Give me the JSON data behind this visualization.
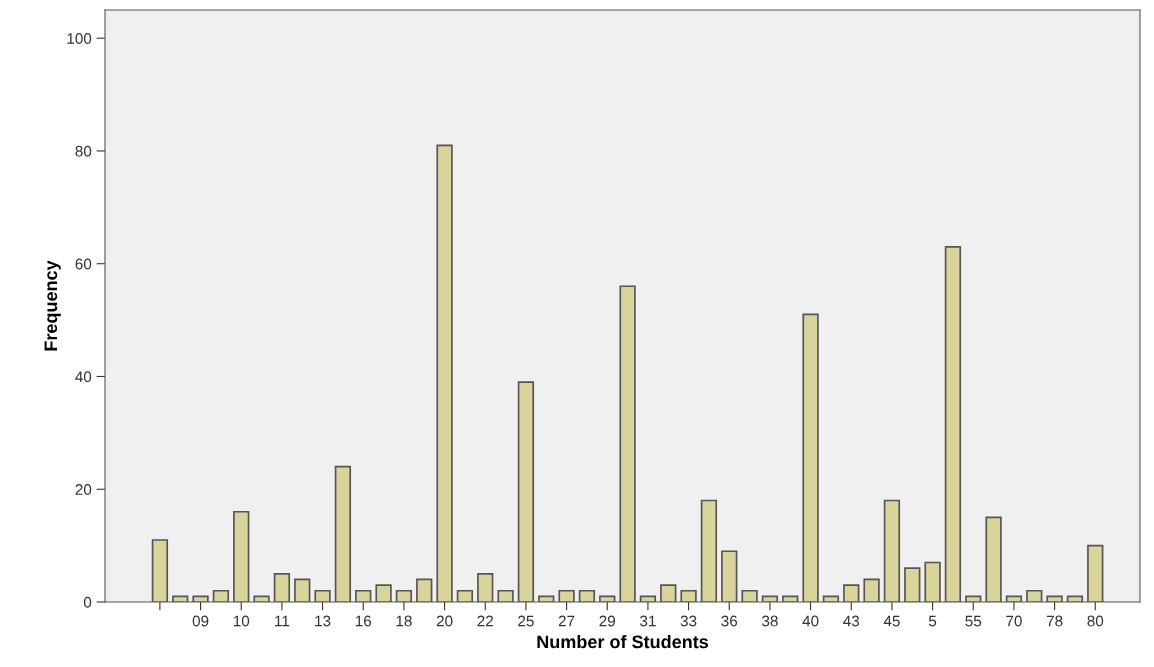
{
  "chart_data": {
    "type": "bar",
    "xlabel": "Number of Students",
    "ylabel": "Frequency",
    "categories": [
      null,
      null,
      "09",
      null,
      "10",
      null,
      "11",
      null,
      "13",
      null,
      "16",
      null,
      "18",
      null,
      "20",
      null,
      "22",
      null,
      "25",
      null,
      "27",
      null,
      "29",
      null,
      "31",
      null,
      "33",
      null,
      "36",
      null,
      "38",
      null,
      "40",
      null,
      "43",
      null,
      "45",
      null,
      "5",
      null,
      "55",
      null,
      "70",
      null,
      "78",
      null,
      "80"
    ],
    "values": [
      11,
      1,
      1,
      2,
      16,
      1,
      5,
      4,
      2,
      24,
      2,
      3,
      2,
      4,
      81,
      2,
      5,
      2,
      39,
      1,
      2,
      2,
      1,
      56,
      1,
      3,
      2,
      18,
      9,
      2,
      1,
      1,
      51,
      1,
      3,
      4,
      18,
      6,
      7,
      63,
      1,
      15,
      1,
      2,
      1,
      1,
      10
    ],
    "color": "#d8d49a",
    "ylim": [
      0,
      105
    ],
    "yticks": [
      0,
      20,
      40,
      60,
      80,
      100
    ],
    "grid": false
  }
}
